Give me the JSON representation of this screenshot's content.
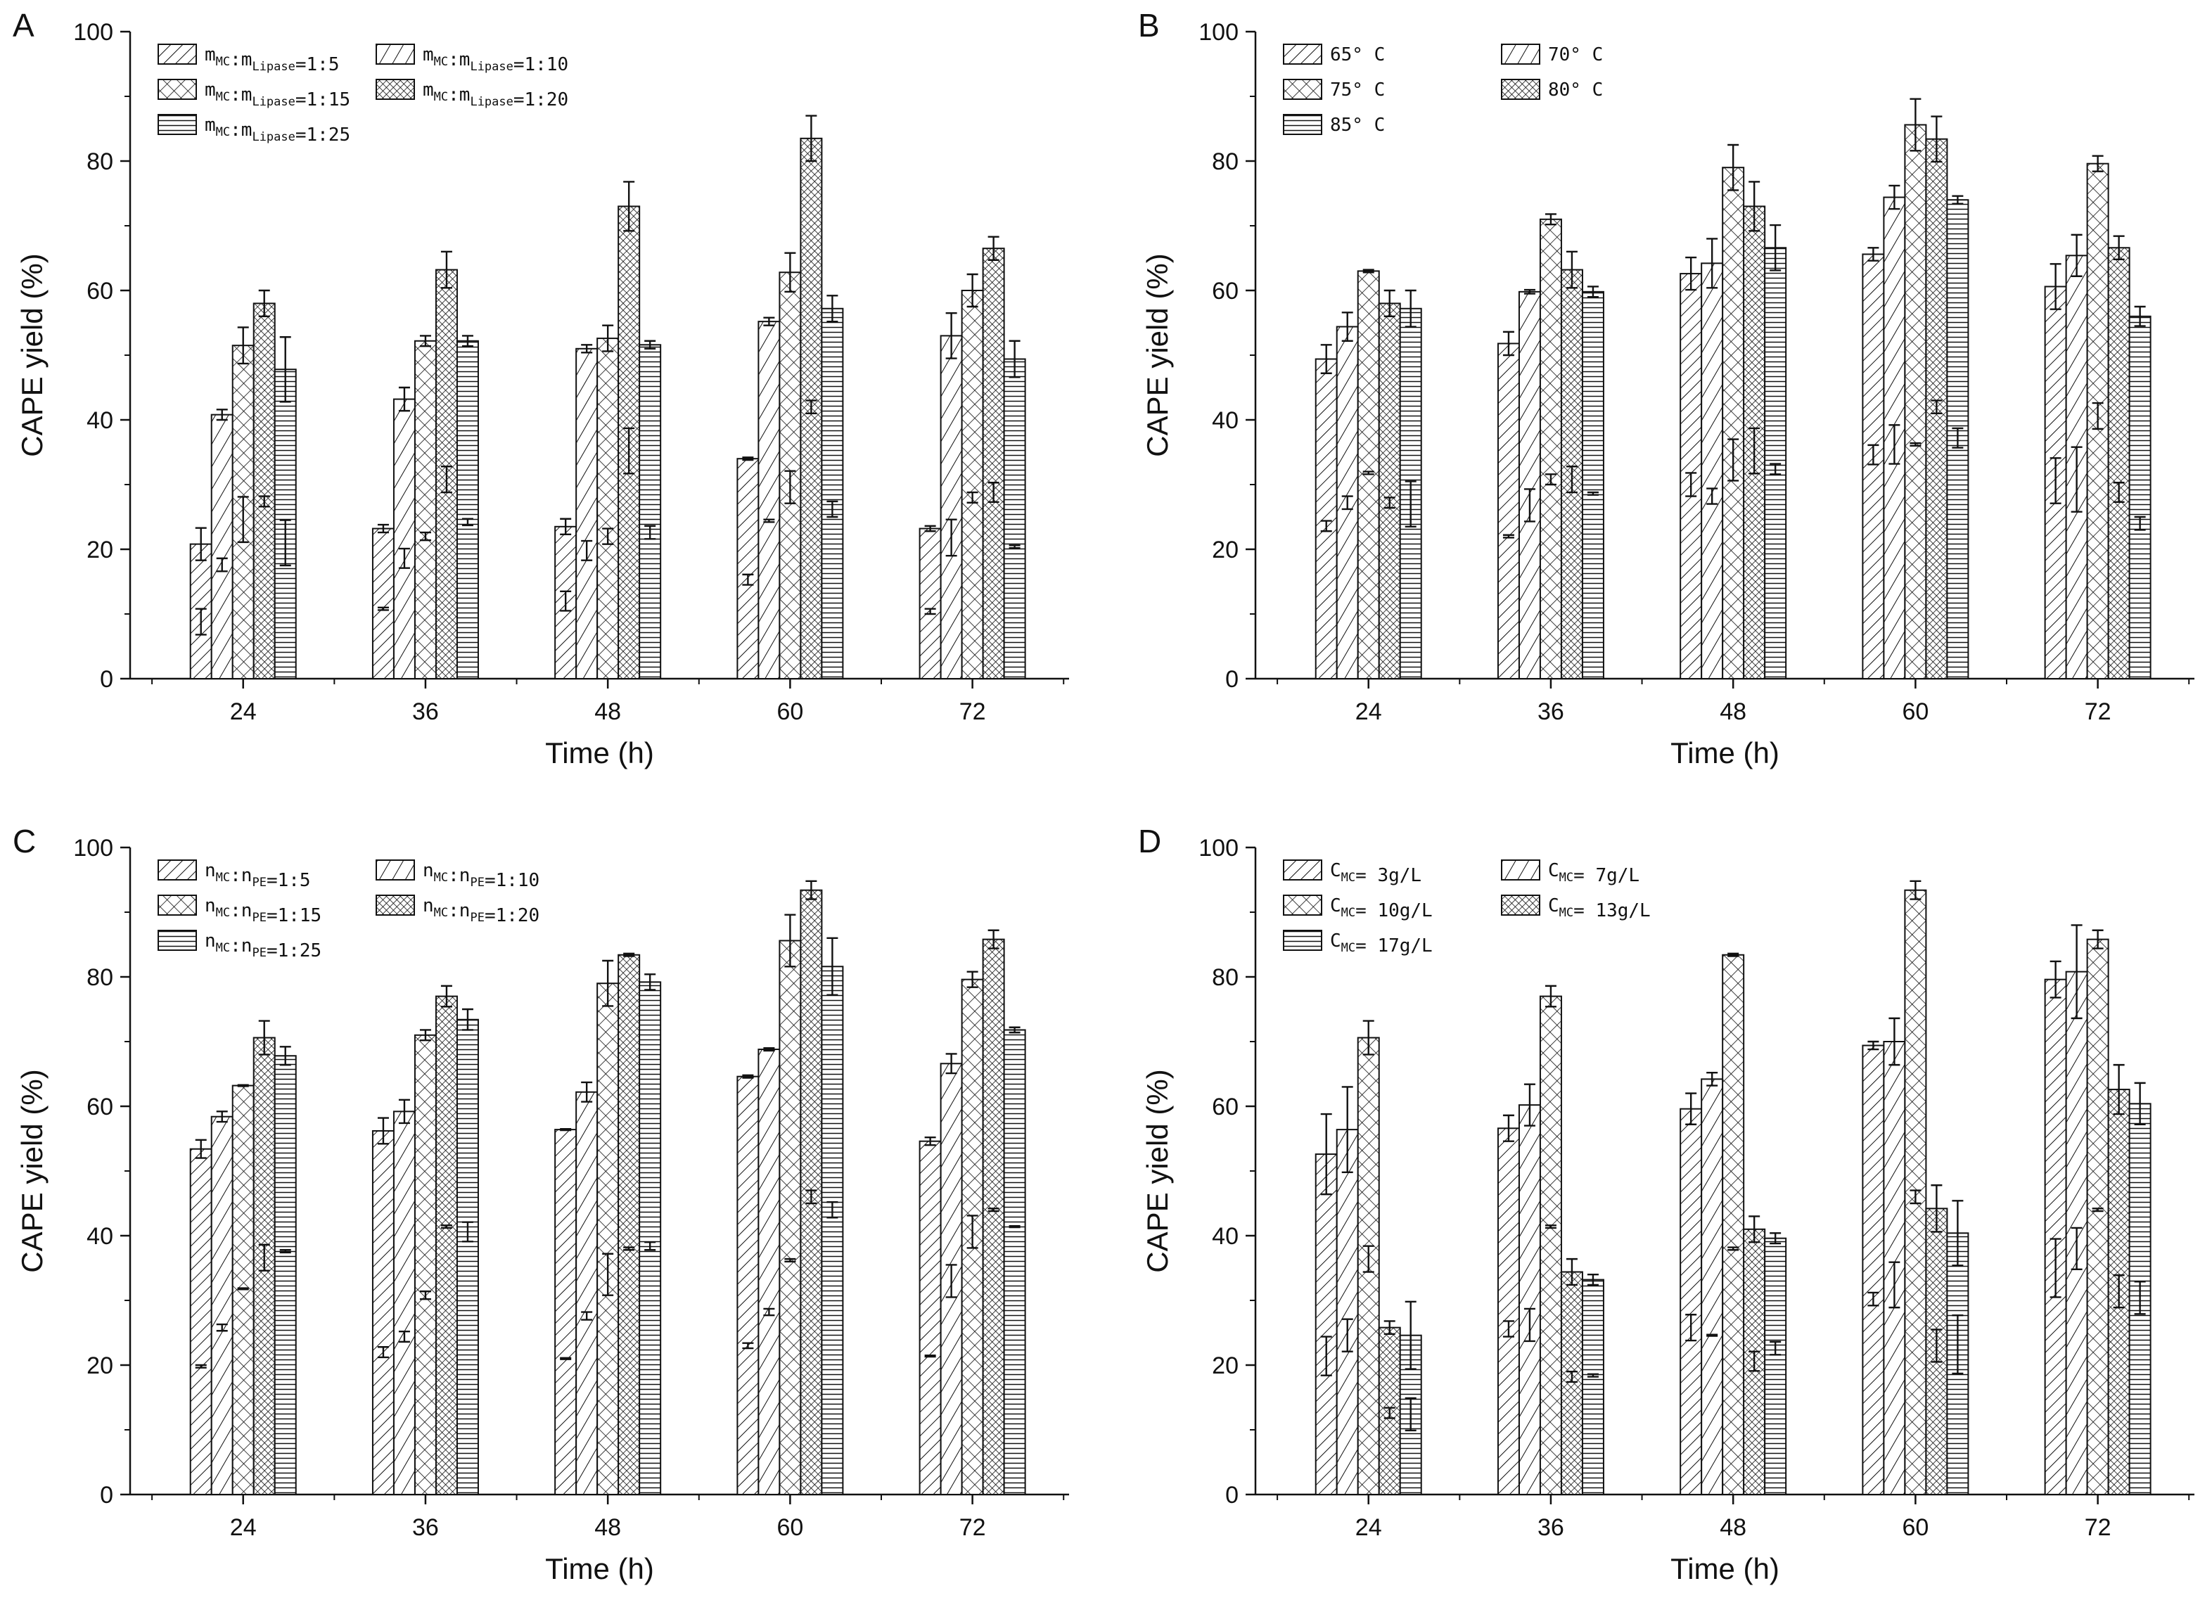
{
  "chart_data": [
    {
      "panel": "A",
      "type": "bar",
      "xlabel": "Time (h)",
      "ylabel": "CAPE yield (%)",
      "ylim": [
        0,
        100
      ],
      "yticks": [
        0,
        20,
        40,
        60,
        80,
        100
      ],
      "categories": [
        "24",
        "36",
        "48",
        "60",
        "72"
      ],
      "legend_placement": "top-left",
      "series": [
        {
          "name": "m_MC:m_Lipase=1:5",
          "legend": [
            {
              "t": "m"
            },
            {
              "t": "MC",
              "sub": true
            },
            {
              "t": ":m"
            },
            {
              "t": "Lipase",
              "sub": true
            },
            {
              "t": "=1:5"
            }
          ],
          "pattern": "diag-sparse",
          "values": [
            20.8,
            23.2,
            23.5,
            34.0,
            23.2
          ],
          "errors": [
            2.5,
            0.6,
            1.2,
            0.2,
            0.4
          ],
          "inner": [
            8.8,
            10.8,
            12.0,
            15.3,
            10.4
          ],
          "inner_err": [
            2.0,
            0.2,
            1.5,
            0.8,
            0.4
          ]
        },
        {
          "name": "m_MC:m_Lipase=1:10",
          "legend": [
            {
              "t": "m"
            },
            {
              "t": "MC",
              "sub": true
            },
            {
              "t": ":m"
            },
            {
              "t": "Lipase",
              "sub": true
            },
            {
              "t": "=1:10"
            }
          ],
          "pattern": "diag-wide",
          "values": [
            40.8,
            43.2,
            51.0,
            55.2,
            53.0
          ],
          "errors": [
            0.8,
            1.8,
            0.6,
            0.6,
            3.5
          ],
          "inner": [
            17.6,
            18.6,
            19.8,
            24.4,
            21.8
          ],
          "inner_err": [
            1.0,
            1.5,
            1.5,
            0.2,
            2.8
          ]
        },
        {
          "name": "m_MC:m_Lipase=1:15",
          "legend": [
            {
              "t": "m"
            },
            {
              "t": "MC",
              "sub": true
            },
            {
              "t": ":m"
            },
            {
              "t": "Lipase",
              "sub": true
            },
            {
              "t": "=1:15"
            }
          ],
          "pattern": "cross",
          "values": [
            51.5,
            52.2,
            52.6,
            62.8,
            60.0
          ],
          "errors": [
            2.8,
            0.8,
            2.0,
            3.0,
            2.5
          ],
          "inner": [
            24.6,
            22.0,
            22.0,
            29.6,
            28.0
          ],
          "inner_err": [
            3.5,
            0.6,
            1.2,
            2.5,
            0.8
          ]
        },
        {
          "name": "m_MC:m_Lipase=1:20",
          "legend": [
            {
              "t": "m"
            },
            {
              "t": "MC",
              "sub": true
            },
            {
              "t": ":m"
            },
            {
              "t": "Lipase",
              "sub": true
            },
            {
              "t": "=1:20"
            }
          ],
          "pattern": "crosshatch",
          "values": [
            58.0,
            63.2,
            73.0,
            83.5,
            66.5
          ],
          "errors": [
            2.0,
            2.8,
            3.8,
            3.5,
            1.8
          ],
          "inner": [
            27.4,
            30.8,
            35.2,
            42.0,
            28.8
          ],
          "inner_err": [
            0.8,
            2.0,
            3.5,
            1.0,
            1.5
          ]
        },
        {
          "name": "m_MC:m_Lipase=1:25",
          "legend": [
            {
              "t": "m"
            },
            {
              "t": "MC",
              "sub": true
            },
            {
              "t": ":m"
            },
            {
              "t": "Lipase",
              "sub": true
            },
            {
              "t": "=1:25"
            }
          ],
          "pattern": "horizontal",
          "values": [
            47.8,
            52.2,
            51.6,
            57.2,
            49.4
          ],
          "errors": [
            5.0,
            0.8,
            0.6,
            2.0,
            2.8
          ],
          "inner": [
            21.0,
            24.2,
            22.6,
            26.2,
            20.4
          ],
          "inner_err": [
            3.5,
            0.5,
            1.0,
            1.2,
            0.2
          ]
        }
      ]
    },
    {
      "panel": "B",
      "type": "bar",
      "xlabel": "Time (h)",
      "ylabel": "CAPE yield (%)",
      "ylim": [
        0,
        100
      ],
      "yticks": [
        0,
        20,
        40,
        60,
        80,
        100
      ],
      "categories": [
        "24",
        "36",
        "48",
        "60",
        "72"
      ],
      "legend_placement": "top-left",
      "series": [
        {
          "name": "65° C",
          "legend": [
            {
              "t": "65° C"
            }
          ],
          "pattern": "diag-sparse",
          "values": [
            49.4,
            51.8,
            62.6,
            65.6,
            60.6
          ],
          "errors": [
            2.2,
            1.8,
            2.5,
            1.0,
            3.5
          ],
          "inner": [
            23.6,
            22.0,
            30.0,
            34.6,
            30.6
          ],
          "inner_err": [
            0.8,
            0.2,
            1.8,
            1.5,
            3.5
          ]
        },
        {
          "name": "70° C",
          "legend": [
            {
              "t": "70° C"
            }
          ],
          "pattern": "diag-wide",
          "values": [
            54.4,
            59.8,
            64.2,
            74.4,
            65.4
          ],
          "errors": [
            2.2,
            0.3,
            3.8,
            1.8,
            3.2
          ],
          "inner": [
            27.2,
            26.8,
            28.2,
            36.2,
            30.8
          ],
          "inner_err": [
            1.0,
            2.5,
            1.2,
            3.0,
            5.0
          ]
        },
        {
          "name": "75° C",
          "legend": [
            {
              "t": "75° C"
            }
          ],
          "pattern": "cross",
          "values": [
            63.0,
            71.0,
            79.0,
            85.6,
            79.6
          ],
          "errors": [
            0.2,
            0.8,
            3.5,
            4.0,
            1.2
          ],
          "inner": [
            31.8,
            30.8,
            33.8,
            36.2,
            40.6
          ],
          "inner_err": [
            0.2,
            0.8,
            3.2,
            0.2,
            2.0
          ]
        },
        {
          "name": "80° C",
          "legend": [
            {
              "t": "80° C"
            }
          ],
          "pattern": "crosshatch",
          "values": [
            58.0,
            63.2,
            73.0,
            83.4,
            66.6
          ],
          "errors": [
            2.0,
            2.8,
            3.8,
            3.5,
            1.8
          ],
          "inner": [
            27.2,
            30.8,
            35.2,
            42.0,
            28.8
          ],
          "inner_err": [
            0.8,
            2.0,
            3.5,
            1.0,
            1.5
          ]
        },
        {
          "name": "85° C",
          "legend": [
            {
              "t": "85° C"
            }
          ],
          "pattern": "horizontal",
          "values": [
            57.2,
            59.8,
            66.6,
            74.0,
            56.0
          ],
          "errors": [
            2.8,
            0.8,
            3.5,
            0.6,
            1.5
          ],
          "inner": [
            27.0,
            28.6,
            32.4,
            37.2,
            24.0
          ],
          "inner_err": [
            3.5,
            0.2,
            0.8,
            1.5,
            1.0
          ]
        }
      ]
    },
    {
      "panel": "C",
      "type": "bar",
      "xlabel": "Time (h)",
      "ylabel": "CAPE yield (%)",
      "ylim": [
        0,
        100
      ],
      "yticks": [
        0,
        20,
        40,
        60,
        80,
        100
      ],
      "categories": [
        "24",
        "36",
        "48",
        "60",
        "72"
      ],
      "legend_placement": "top-left",
      "series": [
        {
          "name": "n_MC:n_PE=1:5",
          "legend": [
            {
              "t": "n"
            },
            {
              "t": "MC",
              "sub": true
            },
            {
              "t": ":n"
            },
            {
              "t": "PE",
              "sub": true
            },
            {
              "t": "=1:5"
            }
          ],
          "pattern": "diag-sparse",
          "values": [
            53.4,
            56.2,
            56.4,
            64.6,
            54.6
          ],
          "errors": [
            1.4,
            2.0,
            0.1,
            0.2,
            0.6
          ],
          "inner": [
            19.8,
            22.0,
            21.0,
            23.0,
            21.4
          ],
          "inner_err": [
            0.2,
            0.8,
            0.1,
            0.4,
            0.1
          ]
        },
        {
          "name": "n_MC:n_PE=1:10",
          "legend": [
            {
              "t": "n"
            },
            {
              "t": "MC",
              "sub": true
            },
            {
              "t": ":n"
            },
            {
              "t": "PE",
              "sub": true
            },
            {
              "t": "=1:10"
            }
          ],
          "pattern": "diag-wide",
          "values": [
            58.4,
            59.2,
            62.2,
            68.8,
            66.6
          ],
          "errors": [
            0.8,
            1.8,
            1.5,
            0.2,
            1.5
          ],
          "inner": [
            25.8,
            24.4,
            27.6,
            28.2,
            33.0
          ],
          "inner_err": [
            0.5,
            0.8,
            0.6,
            0.5,
            2.5
          ]
        },
        {
          "name": "n_MC:n_PE=1:15",
          "legend": [
            {
              "t": "n"
            },
            {
              "t": "MC",
              "sub": true
            },
            {
              "t": ":n"
            },
            {
              "t": "PE",
              "sub": true
            },
            {
              "t": "=1:15"
            }
          ],
          "pattern": "cross",
          "values": [
            63.2,
            71.0,
            79.0,
            85.6,
            79.6
          ],
          "errors": [
            0.1,
            0.8,
            3.5,
            4.0,
            1.2
          ],
          "inner": [
            31.8,
            30.8,
            34.0,
            36.2,
            40.6
          ],
          "inner_err": [
            0.1,
            0.6,
            3.2,
            0.2,
            2.5
          ]
        },
        {
          "name": "n_MC:n_PE=1:20",
          "legend": [
            {
              "t": "n"
            },
            {
              "t": "MC",
              "sub": true
            },
            {
              "t": ":n"
            },
            {
              "t": "PE",
              "sub": true
            },
            {
              "t": "=1:20"
            }
          ],
          "pattern": "crosshatch",
          "values": [
            70.6,
            77.0,
            83.4,
            93.4,
            85.8
          ],
          "errors": [
            2.6,
            1.6,
            0.2,
            1.4,
            1.4
          ],
          "inner": [
            36.6,
            41.4,
            38.0,
            46.0,
            44.0
          ],
          "inner_err": [
            2.0,
            0.2,
            0.2,
            1.0,
            0.2
          ]
        },
        {
          "name": "n_MC:n_PE=1:25",
          "legend": [
            {
              "t": "n"
            },
            {
              "t": "MC",
              "sub": true
            },
            {
              "t": ":n"
            },
            {
              "t": "PE",
              "sub": true
            },
            {
              "t": "=1:25"
            }
          ],
          "pattern": "horizontal",
          "values": [
            67.8,
            73.4,
            79.2,
            81.6,
            71.8
          ],
          "errors": [
            1.4,
            1.6,
            1.2,
            4.4,
            0.4
          ],
          "inner": [
            37.6,
            40.6,
            38.4,
            44.0,
            41.4
          ],
          "inner_err": [
            0.2,
            1.5,
            0.6,
            1.2,
            0.1
          ]
        }
      ]
    },
    {
      "panel": "D",
      "type": "bar",
      "xlabel": "Time (h)",
      "ylabel": "CAPE yield (%)",
      "ylim": [
        0,
        100
      ],
      "yticks": [
        0,
        20,
        40,
        60,
        80,
        100
      ],
      "categories": [
        "24",
        "36",
        "48",
        "60",
        "72"
      ],
      "legend_placement": "top-left",
      "series": [
        {
          "name": "C_MC= 3g/L",
          "legend": [
            {
              "t": "C"
            },
            {
              "t": "MC",
              "sub": true
            },
            {
              "t": "= 3g/L"
            }
          ],
          "pattern": "diag-sparse",
          "values": [
            52.6,
            56.6,
            59.6,
            69.4,
            79.6
          ],
          "errors": [
            6.2,
            2.0,
            2.4,
            0.6,
            2.8
          ],
          "inner": [
            21.4,
            25.6,
            25.8,
            30.2,
            35.0
          ],
          "inner_err": [
            3.0,
            1.2,
            2.0,
            1.0,
            4.5
          ]
        },
        {
          "name": "C_MC= 7g/L",
          "legend": [
            {
              "t": "C"
            },
            {
              "t": "MC",
              "sub": true
            },
            {
              "t": "= 7g/L"
            }
          ],
          "pattern": "diag-wide",
          "values": [
            56.4,
            60.2,
            64.2,
            70.0,
            80.8
          ],
          "errors": [
            6.6,
            3.2,
            1.0,
            3.6,
            7.2
          ],
          "inner": [
            24.6,
            26.2,
            24.6,
            32.4,
            38.0
          ],
          "inner_err": [
            2.5,
            2.5,
            0.1,
            3.5,
            3.2
          ]
        },
        {
          "name": "C_MC= 10g/L",
          "legend": [
            {
              "t": "C"
            },
            {
              "t": "MC",
              "sub": true
            },
            {
              "t": "= 10g/L"
            }
          ],
          "pattern": "cross",
          "values": [
            70.6,
            77.0,
            83.4,
            93.4,
            85.8
          ],
          "errors": [
            2.6,
            1.6,
            0.2,
            1.4,
            1.4
          ],
          "inner": [
            36.4,
            41.4,
            38.0,
            46.0,
            44.0
          ],
          "inner_err": [
            2.0,
            0.2,
            0.2,
            1.0,
            0.2
          ]
        },
        {
          "name": "C_MC= 13g/L",
          "legend": [
            {
              "t": "C"
            },
            {
              "t": "MC",
              "sub": true
            },
            {
              "t": "= 13g/L"
            }
          ],
          "pattern": "crosshatch",
          "values": [
            25.8,
            34.4,
            41.0,
            44.2,
            62.6
          ],
          "errors": [
            1.0,
            2.0,
            2.0,
            3.6,
            3.8
          ],
          "inner": [
            12.6,
            18.2,
            20.6,
            23.0,
            31.4
          ],
          "inner_err": [
            0.8,
            0.8,
            1.5,
            2.5,
            2.5
          ]
        },
        {
          "name": "C_MC= 17g/L",
          "legend": [
            {
              "t": "C"
            },
            {
              "t": "MC",
              "sub": true
            },
            {
              "t": "= 17g/L"
            }
          ],
          "pattern": "horizontal",
          "values": [
            24.6,
            33.2,
            39.6,
            40.4,
            60.4
          ],
          "errors": [
            5.2,
            0.8,
            0.8,
            5.0,
            3.2
          ],
          "inner": [
            12.4,
            18.4,
            22.6,
            23.2,
            30.4
          ],
          "inner_err": [
            2.5,
            0.2,
            1.0,
            4.5,
            2.5
          ]
        }
      ]
    }
  ]
}
